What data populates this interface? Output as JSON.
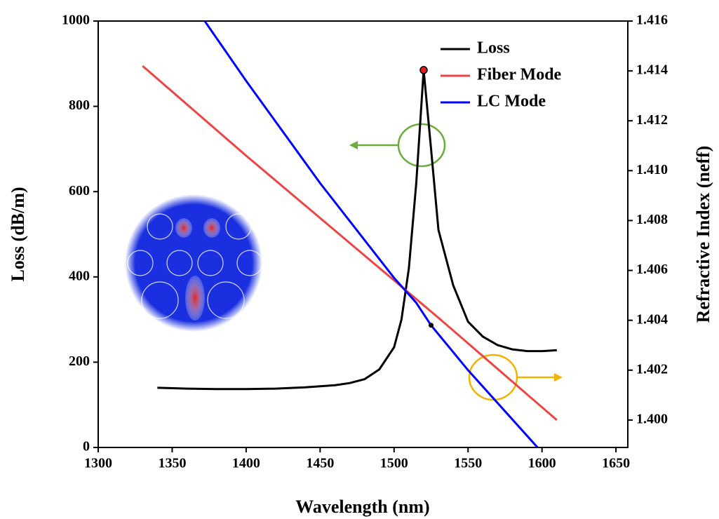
{
  "chart_data": {
    "type": "line",
    "xlabel": "Wavelength (nm)",
    "ylabel": "Loss (dB/m)",
    "y2label": "Refractive Index (neff)",
    "xlim": [
      1300,
      1658
    ],
    "xticks": [
      1300,
      1350,
      1400,
      1450,
      1500,
      1550,
      1600,
      1650
    ],
    "ylim": [
      0,
      1000
    ],
    "yticks": [
      0,
      200,
      400,
      600,
      800,
      1000
    ],
    "y2lim": [
      1.3989,
      1.416
    ],
    "y2ticks": [
      {
        "value": 1.4,
        "label": "1.400"
      },
      1.402,
      1.404,
      1.406,
      1.408,
      {
        "value": 1.41,
        "label": "1.410"
      },
      1.412,
      1.414,
      1.416
    ],
    "legend": "upper right",
    "series": [
      {
        "name": "Loss",
        "color": "#000000",
        "axis": "y",
        "x": [
          1340,
          1360,
          1380,
          1400,
          1420,
          1440,
          1460,
          1470,
          1480,
          1490,
          1500,
          1505,
          1510,
          1515,
          1520,
          1525,
          1530,
          1540,
          1550,
          1560,
          1570,
          1580,
          1590,
          1600,
          1610
        ],
        "values": [
          140,
          138,
          137,
          137,
          138,
          141,
          146,
          151,
          160,
          183,
          235,
          300,
          420,
          620,
          885,
          700,
          510,
          380,
          295,
          260,
          240,
          230,
          226,
          226,
          228
        ]
      },
      {
        "name": "Fiber Mode",
        "color": "#ee4444",
        "axis": "y2",
        "x": [
          1330,
          1400,
          1450,
          1500,
          1520,
          1530,
          1610
        ],
        "values": [
          1.4142,
          1.4106,
          1.4081,
          1.4056,
          1.4046,
          1.4041,
          1.4
        ]
      },
      {
        "name": "LC Mode",
        "color": "#0000ff",
        "axis": "y2",
        "x": [
          1372,
          1400,
          1450,
          1500,
          1515,
          1525,
          1550,
          1597
        ],
        "values": [
          1.416,
          1.4136,
          1.4095,
          1.4057,
          1.4047,
          1.4038,
          1.402,
          1.3989
        ]
      }
    ]
  }
}
